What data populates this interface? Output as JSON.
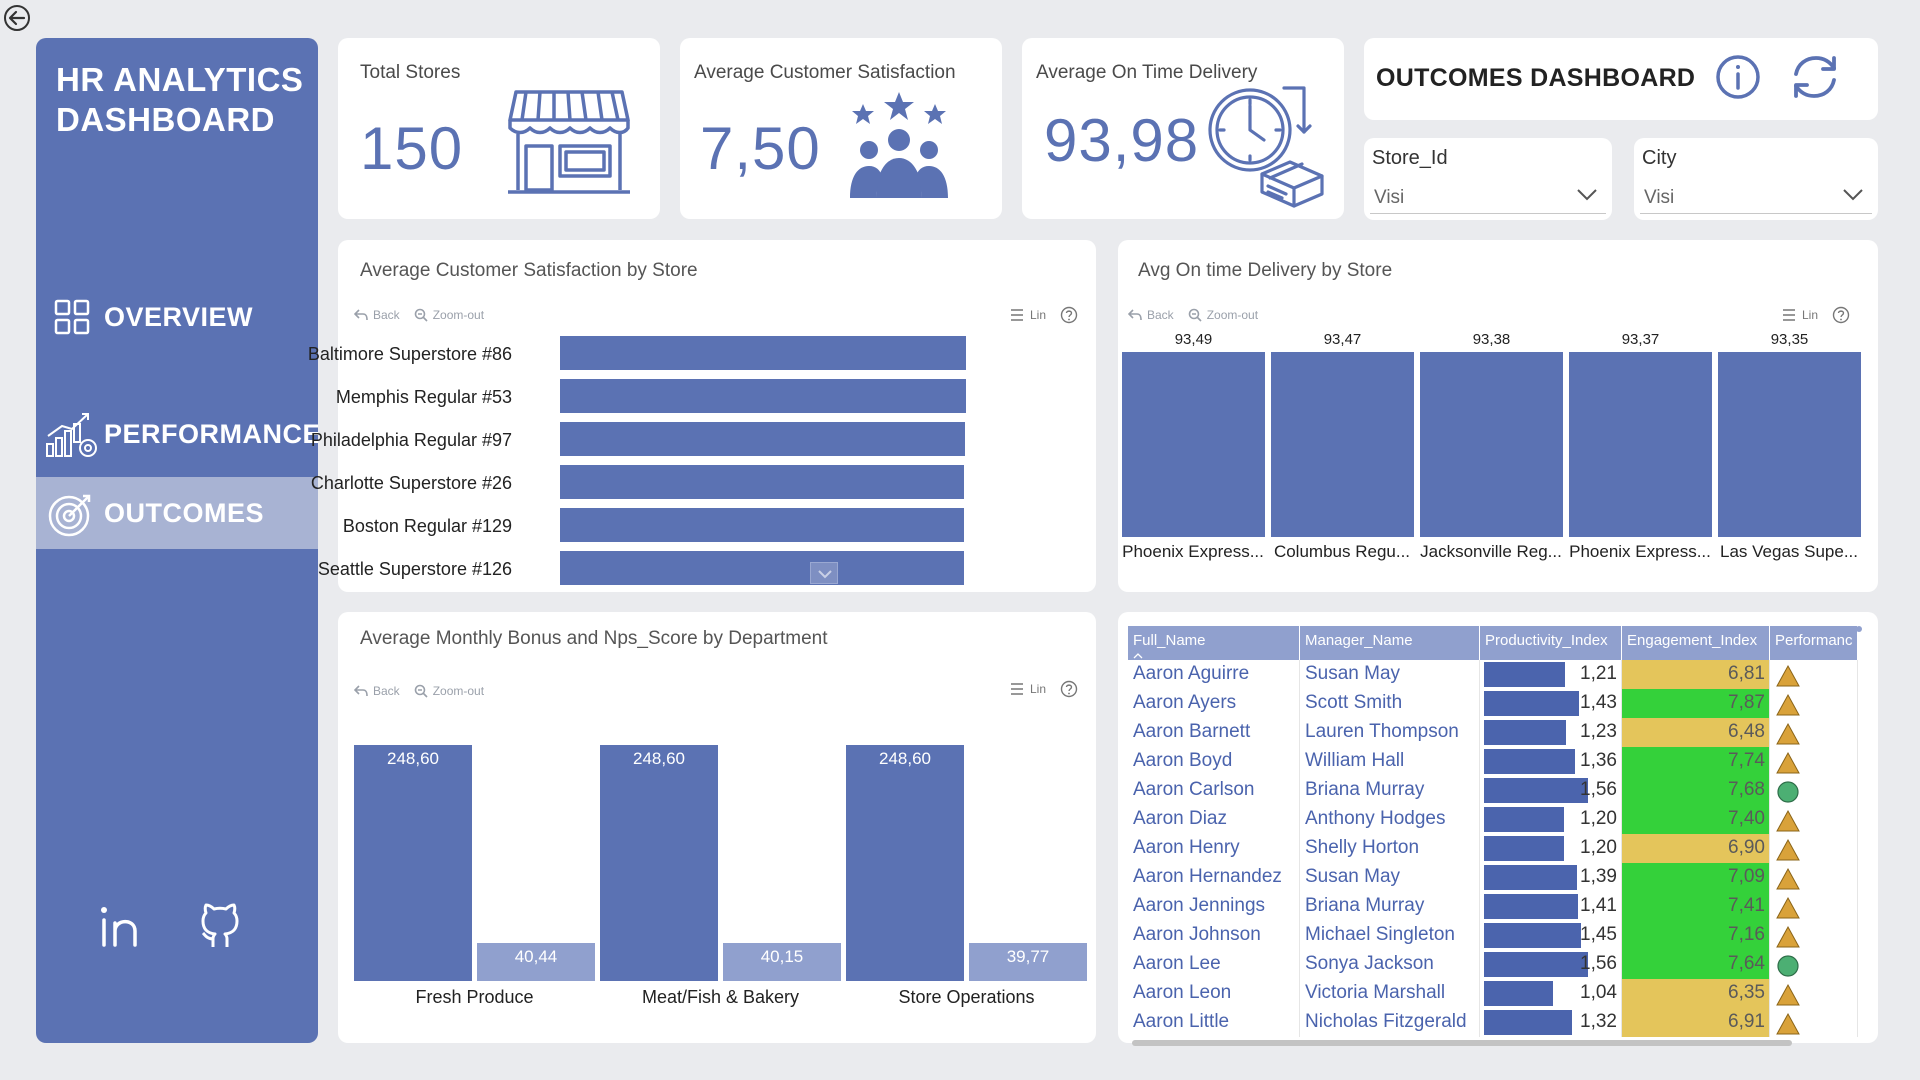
{
  "colors": {
    "accent": "#5b72b3",
    "accent_light": "#90a0ce",
    "nav_active": "#a8b3d3",
    "eng_high": "#34d13a",
    "eng_mid": "#e4c55b",
    "perf_warn": "#d9a23a",
    "perf_ok": "#4caf73"
  },
  "sidebar": {
    "brand": "HR ANALYTICS DASHBOARD",
    "nav": [
      {
        "label": "OVERVIEW",
        "icon": "grid-icon"
      },
      {
        "label": "PERFORMANCE",
        "icon": "growth-chart-icon"
      },
      {
        "label": "OUTCOMES",
        "icon": "target-icon"
      }
    ],
    "social": [
      {
        "icon": "linkedin-icon"
      },
      {
        "icon": "github-icon"
      }
    ]
  },
  "kpis": {
    "stores": {
      "label": "Total Stores",
      "value": "150",
      "icon": "store-icon"
    },
    "satisfaction": {
      "label": "Average Customer Satisfaction",
      "value": "7,50",
      "icon": "customer-group-stars-icon"
    },
    "delivery": {
      "label": "Average On Time Delivery",
      "value": "93,98",
      "icon": "clock-delivery-box-icon"
    }
  },
  "header": {
    "title": "OUTCOMES DASHBOARD",
    "info_icon": "info-icon",
    "refresh_icon": "refresh-icon"
  },
  "slicers": [
    {
      "label": "Store_Id",
      "value": "Visi"
    },
    {
      "label": "City",
      "value": "Visi"
    }
  ],
  "toolbar": {
    "back": "Back",
    "zoom_out": "Zoom-out",
    "lin": "Lin"
  },
  "chart_data": [
    {
      "type": "bar",
      "orientation": "horizontal",
      "title": "Average Customer Satisfaction by Store",
      "categories": [
        "Baltimore Superstore #86",
        "Memphis Regular #53",
        "Philadelphia Regular #97",
        "Charlotte Superstore #26",
        "Boston Regular #129",
        "Seattle Superstore #126"
      ],
      "values": [
        8.9,
        8.9,
        8.88,
        8.86,
        8.86,
        8.85
      ],
      "xlim": [
        0,
        8.9
      ]
    },
    {
      "type": "bar",
      "title": "Avg On time Delivery by Store",
      "categories": [
        "Phoenix Express...",
        "Columbus Regu...",
        "Jacksonville Reg...",
        "Phoenix Express...",
        "Las Vegas Supe..."
      ],
      "values": [
        93.49,
        93.47,
        93.38,
        93.37,
        93.35
      ],
      "labels": [
        "93,49",
        "93,47",
        "93,38",
        "93,37",
        "93,35"
      ],
      "ylim": [
        0,
        93.49
      ]
    },
    {
      "type": "bar",
      "title": "Average Monthly Bonus and Nps_Score by Department",
      "categories": [
        "Fresh Produce",
        "Meat/Fish & Bakery",
        "Store Operations"
      ],
      "series": [
        {
          "name": "Average Monthly Bonus",
          "values": [
            248.6,
            248.6,
            248.6
          ],
          "labels": [
            "248,60",
            "248,60",
            "248,60"
          ]
        },
        {
          "name": "Nps_Score",
          "values": [
            40.44,
            40.15,
            39.77
          ],
          "labels": [
            "40,44",
            "40,15",
            "39,77"
          ]
        }
      ],
      "ylim": [
        0,
        248.6
      ]
    }
  ],
  "table": {
    "columns": [
      "Full_Name",
      "Manager_Name",
      "Productivity_Index",
      "Engagement_Index",
      "Performanc"
    ],
    "rows": [
      {
        "name": "Aaron Aguirre",
        "manager": "Susan May",
        "prod": 1.21,
        "prod_label": "1,21",
        "eng": "6,81",
        "eng_level": "mid",
        "perf": "warning-triangle-icon"
      },
      {
        "name": "Aaron Ayers",
        "manager": "Scott Smith",
        "prod": 1.43,
        "prod_label": "1,43",
        "eng": "7,87",
        "eng_level": "high",
        "perf": "warning-triangle-icon"
      },
      {
        "name": "Aaron Barnett",
        "manager": "Lauren Thompson",
        "prod": 1.23,
        "prod_label": "1,23",
        "eng": "6,48",
        "eng_level": "mid",
        "perf": "warning-triangle-icon"
      },
      {
        "name": "Aaron Boyd",
        "manager": "William Hall",
        "prod": 1.36,
        "prod_label": "1,36",
        "eng": "7,74",
        "eng_level": "high",
        "perf": "warning-triangle-icon"
      },
      {
        "name": "Aaron Carlson",
        "manager": "Briana Murray",
        "prod": 1.56,
        "prod_label": "1,56",
        "eng": "7,68",
        "eng_level": "high",
        "perf": "ok-circle-icon"
      },
      {
        "name": "Aaron Diaz",
        "manager": "Anthony Hodges",
        "prod": 1.2,
        "prod_label": "1,20",
        "eng": "7,40",
        "eng_level": "high",
        "perf": "warning-triangle-icon"
      },
      {
        "name": "Aaron Henry",
        "manager": "Shelly Horton",
        "prod": 1.2,
        "prod_label": "1,20",
        "eng": "6,90",
        "eng_level": "mid",
        "perf": "warning-triangle-icon"
      },
      {
        "name": "Aaron Hernandez",
        "manager": "Susan May",
        "prod": 1.39,
        "prod_label": "1,39",
        "eng": "7,09",
        "eng_level": "high",
        "perf": "warning-triangle-icon"
      },
      {
        "name": "Aaron Jennings",
        "manager": "Briana Murray",
        "prod": 1.41,
        "prod_label": "1,41",
        "eng": "7,41",
        "eng_level": "high",
        "perf": "warning-triangle-icon"
      },
      {
        "name": "Aaron Johnson",
        "manager": "Michael Singleton",
        "prod": 1.45,
        "prod_label": "1,45",
        "eng": "7,16",
        "eng_level": "high",
        "perf": "warning-triangle-icon"
      },
      {
        "name": "Aaron Lee",
        "manager": "Sonya Jackson",
        "prod": 1.56,
        "prod_label": "1,56",
        "eng": "7,64",
        "eng_level": "high",
        "perf": "ok-circle-icon"
      },
      {
        "name": "Aaron Leon",
        "manager": "Victoria Marshall",
        "prod": 1.04,
        "prod_label": "1,04",
        "eng": "6,35",
        "eng_level": "mid",
        "perf": "warning-triangle-icon"
      },
      {
        "name": "Aaron Little",
        "manager": "Nicholas Fitzgerald",
        "prod": 1.32,
        "prod_label": "1,32",
        "eng": "6,91",
        "eng_level": "mid",
        "perf": "warning-triangle-icon"
      }
    ],
    "prod_max": 1.56
  }
}
